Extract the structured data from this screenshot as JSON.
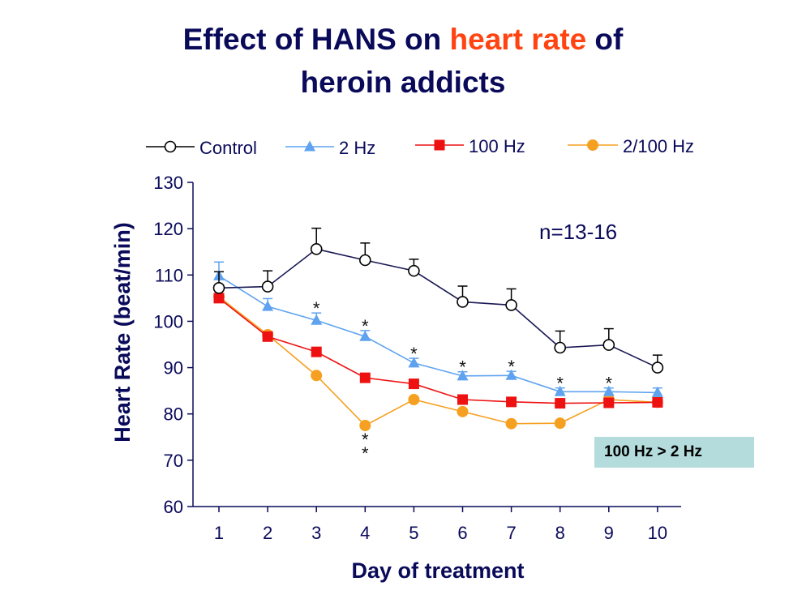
{
  "title": {
    "line1_a": "Effect of HANS on ",
    "line1_highlight": "heart rate",
    "line1_b": " of",
    "line2": "heroin addicts"
  },
  "annotation": "n=13-16",
  "comparison_badge": "100 Hz > 2 Hz",
  "chart_data": {
    "type": "line",
    "title": "Effect of HANS on heart rate of heroin addicts",
    "xlabel": "Day of treatment",
    "ylabel": "Heart Rate (beat/min)",
    "x": [
      1,
      2,
      3,
      4,
      5,
      6,
      7,
      8,
      9,
      10
    ],
    "ylim": [
      60,
      130
    ],
    "yticks": [
      60,
      70,
      80,
      90,
      100,
      110,
      120,
      130
    ],
    "legend_position": "top",
    "series": [
      {
        "name": "Control",
        "color": "#000000",
        "marker": "open-circle",
        "values": [
          107.2,
          107.5,
          115.6,
          113.2,
          110.9,
          104.2,
          103.5,
          94.3,
          94.9,
          90.0
        ],
        "errors": [
          3.5,
          3.4,
          4.5,
          3.7,
          2.5,
          3.4,
          3.5,
          3.6,
          3.5,
          2.7
        ]
      },
      {
        "name": "2 Hz",
        "color": "#5fa3f0",
        "marker": "triangle",
        "values": [
          109.8,
          103.2,
          100.2,
          96.7,
          91.0,
          88.2,
          88.3,
          84.8,
          84.8,
          84.6
        ],
        "errors": [
          3.0,
          1.7,
          1.6,
          1.3,
          1.0,
          0.9,
          0.9,
          0.8,
          0.8,
          1.0
        ]
      },
      {
        "name": "100 Hz",
        "color": "#ee1111",
        "marker": "square",
        "values": [
          105.0,
          96.7,
          93.4,
          87.8,
          86.5,
          83.1,
          82.6,
          82.3,
          82.4,
          82.5
        ],
        "errors": [
          1.6,
          0.5,
          0.4,
          0.4,
          0.4,
          0.3,
          0.3,
          0.3,
          0.3,
          0.3
        ]
      },
      {
        "name": "2/100 Hz",
        "color": "#f5a020",
        "marker": "filled-circle",
        "values": [
          105.3,
          97.1,
          88.3,
          77.5,
          83.1,
          80.5,
          77.9,
          78.0,
          83.1,
          82.5
        ],
        "errors": [
          0,
          0,
          0,
          0,
          0,
          0,
          0,
          0,
          0,
          0
        ]
      }
    ],
    "significance_marks": [
      {
        "day": 3,
        "label": "*",
        "near": "2 Hz"
      },
      {
        "day": 4,
        "label": "*",
        "near": "2 Hz"
      },
      {
        "day": 5,
        "label": "*",
        "near": "2 Hz"
      },
      {
        "day": 6,
        "label": "*",
        "near": "2 Hz"
      },
      {
        "day": 7,
        "label": "*",
        "near": "2 Hz"
      },
      {
        "day": 8,
        "label": "*",
        "near": "2 Hz"
      },
      {
        "day": 9,
        "label": "*",
        "near": "2 Hz"
      },
      {
        "day": 4,
        "label": "*",
        "near": "2/100 Hz"
      },
      {
        "day": 4,
        "label": "*",
        "near": "2/100 Hz"
      }
    ]
  }
}
